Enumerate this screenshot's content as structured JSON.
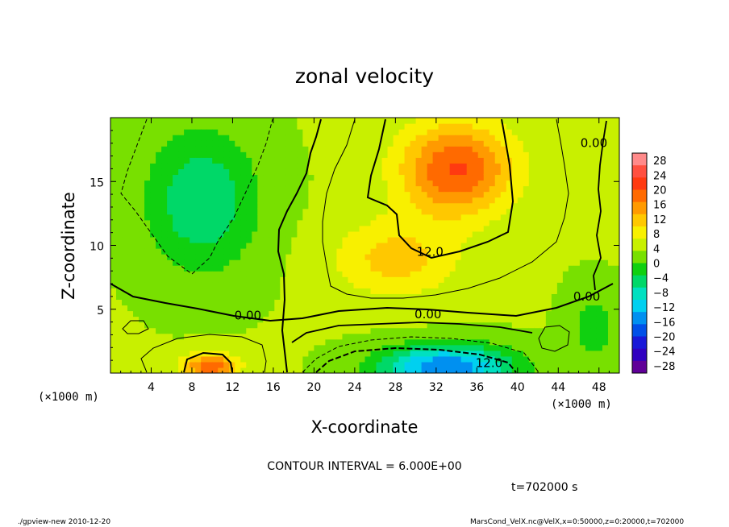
{
  "chart_data": {
    "type": "heatmap",
    "title": "zonal velocity",
    "xlabel": "X-coordinate",
    "ylabel": "Z-coordinate",
    "x_unit": "(×1000 m)",
    "y_unit": "(×1000 m)",
    "xlim": [
      0,
      50
    ],
    "ylim": [
      0,
      20
    ],
    "x_ticks": [
      "4",
      "8",
      "12",
      "16",
      "20",
      "24",
      "28",
      "32",
      "36",
      "40",
      "44",
      "48"
    ],
    "x_tick_values": [
      4,
      8,
      12,
      16,
      20,
      24,
      28,
      32,
      36,
      40,
      44,
      48
    ],
    "y_ticks": [
      "5",
      "10",
      "15"
    ],
    "y_tick_values": [
      5,
      10,
      15
    ],
    "contour_interval_text": "CONTOUR INTERVAL = 6.000E+00",
    "time_text": "t=702000 s",
    "contour_labels": [
      {
        "text": "0.00",
        "x": 13.5,
        "z": 4.5
      },
      {
        "text": "0.00",
        "x": 31.2,
        "z": 4.6
      },
      {
        "text": "12.0",
        "x": 31.4,
        "z": 9.5
      },
      {
        "text": "12.0",
        "x": 37.2,
        "z": 0.8
      },
      {
        "text": "0.00",
        "x": 47.5,
        "z": 18.0
      },
      {
        "text": "0.00",
        "x": 46.8,
        "z": 6.0
      }
    ],
    "features": [
      {
        "x": 9,
        "z": 13.5,
        "value": -10,
        "sx": 5.5,
        "sz": 5.5
      },
      {
        "x": 34,
        "z": 16,
        "value": 17,
        "sx": 5.5,
        "sz": 3.6
      },
      {
        "x": 33,
        "z": 0.5,
        "value": -20,
        "sx": 6.5,
        "sz": 1.7
      },
      {
        "x": 9.8,
        "z": 0.5,
        "value": 16,
        "sx": 2.6,
        "sz": 1.1
      },
      {
        "x": 28,
        "z": 9,
        "value": 8,
        "sx": 6,
        "sz": 3
      },
      {
        "x": 47.5,
        "z": 3.5,
        "value": -5,
        "sx": 2.5,
        "sz": 3
      }
    ],
    "colorbar": {
      "ticks": [
        "28",
        "24",
        "20",
        "16",
        "12",
        "8",
        "4",
        "0",
        "−4",
        "−8",
        "−12",
        "−16",
        "−20",
        "−24",
        "−28"
      ],
      "colors": [
        "#ff8a8a",
        "#ff5040",
        "#ff3a10",
        "#ff6a00",
        "#ff9a00",
        "#ffc800",
        "#f8f000",
        "#c8f000",
        "#78e000",
        "#10d010",
        "#00d868",
        "#00e0c0",
        "#00d0f0",
        "#0090f0",
        "#0050e8",
        "#1818d8",
        "#3000c0",
        "#600098"
      ]
    }
  },
  "footer": {
    "left": "./gpview-new   2010-12-20",
    "right": "MarsCond_VelX.nc@VelX,x=0:50000,z=0:20000,t=702000"
  }
}
